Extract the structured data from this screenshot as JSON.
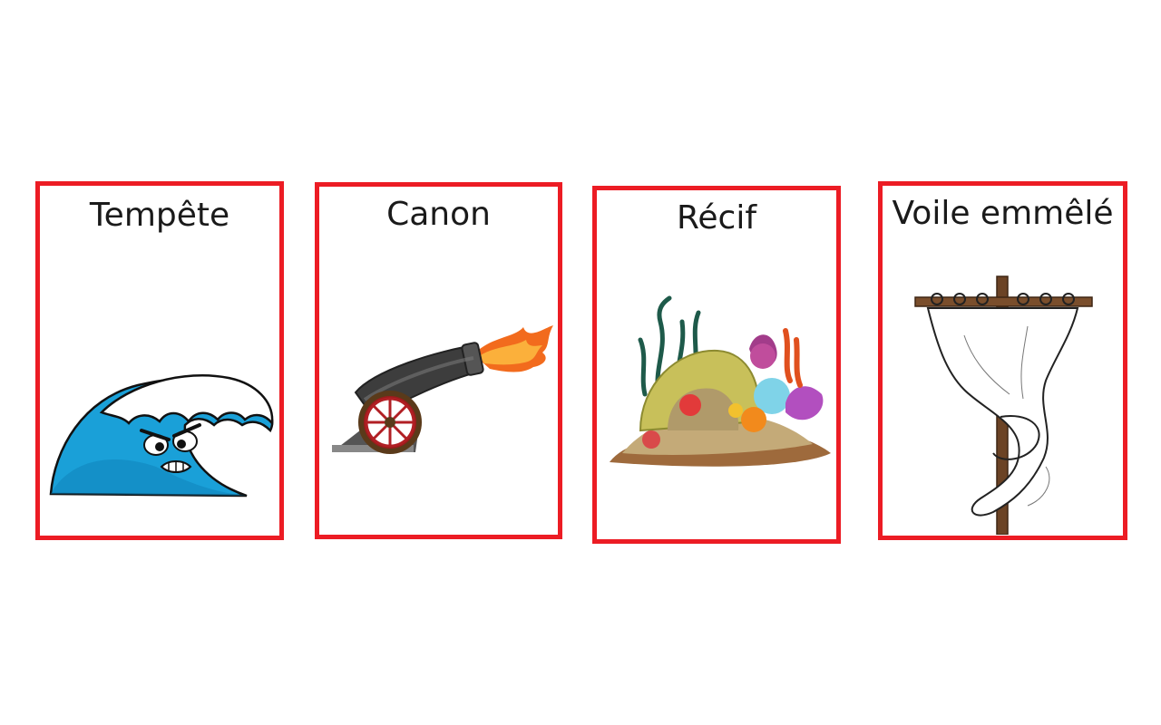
{
  "cards": [
    {
      "label": "Tempête",
      "icon": "angry-wave-icon",
      "border_color": "#ec1c24"
    },
    {
      "label": "Canon",
      "icon": "firing-cannon-icon",
      "border_color": "#ec1c24"
    },
    {
      "label": "Récif",
      "icon": "coral-reef-icon",
      "border_color": "#ec1c24"
    },
    {
      "label": "Voile emmêlé",
      "icon": "tangled-sail-icon",
      "border_color": "#ec1c24"
    }
  ]
}
